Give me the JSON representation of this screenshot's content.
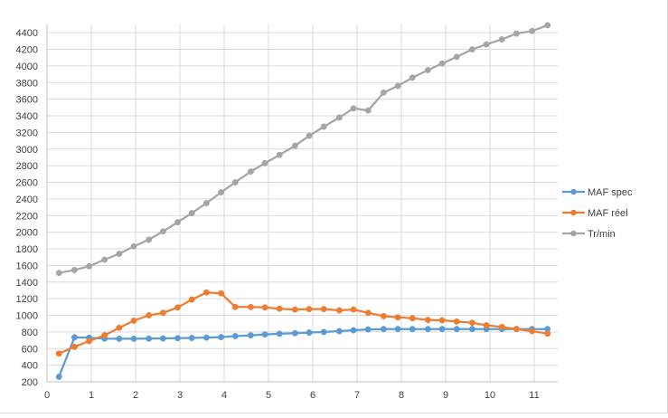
{
  "chart_data": {
    "type": "line",
    "title": "",
    "xlabel": "",
    "ylabel": "",
    "xlim": [
      0,
      12
    ],
    "ylim": [
      200,
      4500
    ],
    "x_ticks": [
      "0",
      "1",
      "2",
      "3",
      "4",
      "5",
      "6",
      "7",
      "8",
      "9",
      "10",
      "11"
    ],
    "y_ticks": [
      "200",
      "400",
      "600",
      "800",
      "1000",
      "1200",
      "1400",
      "1600",
      "1800",
      "2000",
      "2200",
      "2400",
      "2600",
      "2800",
      "3000",
      "3200",
      "3400",
      "3600",
      "3800",
      "4000",
      "4200",
      "4400"
    ],
    "grid": true,
    "legend_position": "right",
    "series": [
      {
        "name": "MAF spec",
        "color": "#5b9bd5",
        "points": [
          [
            0.27,
            260
          ],
          [
            0.62,
            735
          ],
          [
            0.95,
            730
          ],
          [
            1.3,
            720
          ],
          [
            1.63,
            718
          ],
          [
            1.96,
            718
          ],
          [
            2.3,
            720
          ],
          [
            2.62,
            722
          ],
          [
            2.95,
            725
          ],
          [
            3.27,
            728
          ],
          [
            3.6,
            732
          ],
          [
            3.93,
            738
          ],
          [
            4.25,
            750
          ],
          [
            4.6,
            760
          ],
          [
            4.92,
            770
          ],
          [
            5.25,
            778
          ],
          [
            5.6,
            785
          ],
          [
            5.92,
            792
          ],
          [
            6.25,
            800
          ],
          [
            6.6,
            810
          ],
          [
            6.92,
            820
          ],
          [
            7.25,
            830
          ],
          [
            7.6,
            835
          ],
          [
            7.92,
            835
          ],
          [
            8.25,
            835
          ],
          [
            8.6,
            835
          ],
          [
            8.92,
            835
          ],
          [
            9.25,
            835
          ],
          [
            9.6,
            835
          ],
          [
            9.92,
            835
          ],
          [
            10.27,
            835
          ],
          [
            10.6,
            835
          ],
          [
            10.95,
            835
          ],
          [
            11.3,
            835
          ]
        ]
      },
      {
        "name": "MAF réel",
        "color": "#ed7d31",
        "points": [
          [
            0.27,
            540
          ],
          [
            0.62,
            620
          ],
          [
            0.95,
            690
          ],
          [
            1.3,
            760
          ],
          [
            1.63,
            850
          ],
          [
            1.96,
            935
          ],
          [
            2.3,
            1000
          ],
          [
            2.62,
            1030
          ],
          [
            2.95,
            1095
          ],
          [
            3.27,
            1190
          ],
          [
            3.6,
            1275
          ],
          [
            3.93,
            1265
          ],
          [
            4.25,
            1100
          ],
          [
            4.6,
            1100
          ],
          [
            4.92,
            1095
          ],
          [
            5.25,
            1080
          ],
          [
            5.6,
            1070
          ],
          [
            5.92,
            1075
          ],
          [
            6.25,
            1075
          ],
          [
            6.6,
            1060
          ],
          [
            6.92,
            1070
          ],
          [
            7.25,
            1030
          ],
          [
            7.6,
            990
          ],
          [
            7.92,
            975
          ],
          [
            8.25,
            965
          ],
          [
            8.6,
            945
          ],
          [
            8.92,
            940
          ],
          [
            9.25,
            925
          ],
          [
            9.6,
            910
          ],
          [
            9.92,
            880
          ],
          [
            10.27,
            860
          ],
          [
            10.6,
            835
          ],
          [
            10.95,
            810
          ],
          [
            11.3,
            780
          ]
        ]
      },
      {
        "name": "Tr/min",
        "color": "#a5a5a5",
        "points": [
          [
            0.27,
            1510
          ],
          [
            0.62,
            1545
          ],
          [
            0.95,
            1590
          ],
          [
            1.3,
            1670
          ],
          [
            1.63,
            1740
          ],
          [
            1.96,
            1830
          ],
          [
            2.3,
            1910
          ],
          [
            2.62,
            2010
          ],
          [
            2.95,
            2120
          ],
          [
            3.27,
            2230
          ],
          [
            3.6,
            2350
          ],
          [
            3.93,
            2480
          ],
          [
            4.25,
            2600
          ],
          [
            4.6,
            2730
          ],
          [
            4.92,
            2830
          ],
          [
            5.25,
            2930
          ],
          [
            5.6,
            3040
          ],
          [
            5.92,
            3160
          ],
          [
            6.25,
            3270
          ],
          [
            6.6,
            3380
          ],
          [
            6.92,
            3490
          ],
          [
            7.25,
            3465
          ],
          [
            7.6,
            3680
          ],
          [
            7.92,
            3760
          ],
          [
            8.25,
            3860
          ],
          [
            8.6,
            3950
          ],
          [
            8.92,
            4030
          ],
          [
            9.25,
            4110
          ],
          [
            9.6,
            4200
          ],
          [
            9.92,
            4260
          ],
          [
            10.27,
            4320
          ],
          [
            10.6,
            4390
          ],
          [
            10.95,
            4420
          ],
          [
            11.3,
            4490
          ]
        ]
      }
    ]
  }
}
